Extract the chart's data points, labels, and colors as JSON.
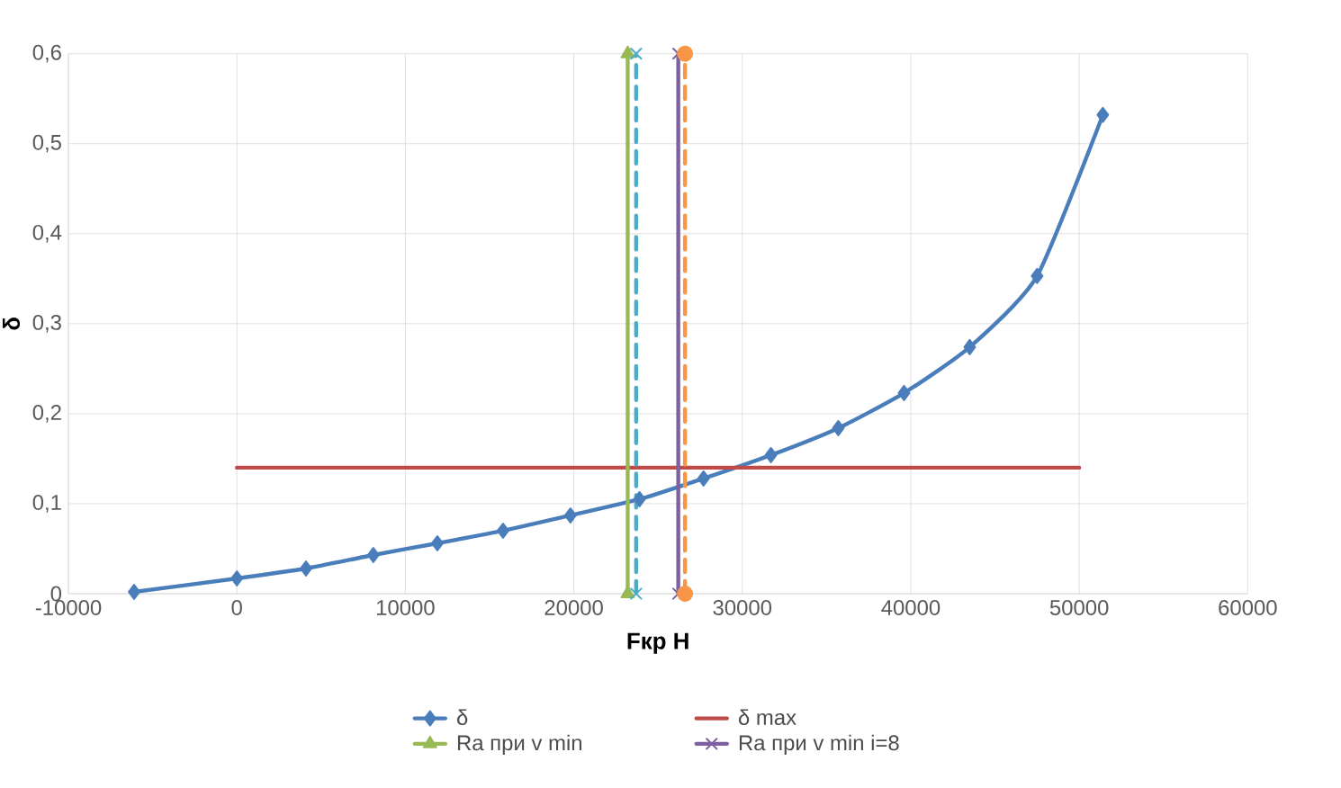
{
  "chart_data": {
    "type": "line",
    "xlabel": "Fкр Н",
    "ylabel": "δ",
    "xlim": [
      -10000,
      60000
    ],
    "xticks": [
      -10000,
      0,
      10000,
      20000,
      30000,
      40000,
      50000,
      60000
    ],
    "ylim": [
      0,
      0.6
    ],
    "yticks": [
      0,
      {
        "value": 0.1,
        "label": "0,1"
      },
      {
        "value": 0.2,
        "label": "0,2"
      },
      {
        "value": 0.3,
        "label": "0,3"
      },
      {
        "value": 0.4,
        "label": "0,4"
      },
      {
        "value": 0.5,
        "label": "0,5"
      },
      {
        "value": 0.6,
        "label": "0,6"
      }
    ],
    "grid": true,
    "legend": "bottom",
    "series": [
      {
        "name": "δ",
        "color": "#4a7ebb",
        "marker": "diamond",
        "line_style": "solid",
        "x": [
          -6100,
          0,
          4100,
          8100,
          11900,
          15800,
          19800,
          23900,
          27700,
          31700,
          35700,
          39600,
          43500,
          47500,
          51400
        ],
        "values": [
          0.002,
          0.017,
          0.028,
          0.043,
          0.056,
          0.07,
          0.087,
          0.105,
          0.128,
          0.154,
          0.184,
          0.223,
          0.274,
          0.353,
          0.532
        ]
      },
      {
        "name": "δ max",
        "color": "#be4b48",
        "marker": "none",
        "line_style": "solid",
        "x": [
          0,
          50000
        ],
        "values": [
          0.14,
          0.14
        ]
      },
      {
        "name": "Ra при v min",
        "color": "#98b954",
        "marker": "triangle",
        "line_style": "solid",
        "x": [
          23200,
          23200
        ],
        "values": [
          0,
          0.6
        ]
      },
      {
        "color": "#4bacc6",
        "marker": "cross",
        "line_style": "dashed",
        "x": [
          23700,
          23700
        ],
        "values": [
          0,
          0.6
        ]
      },
      {
        "name": "Ra при v min i=8",
        "color": "#7d60a0",
        "marker": "cross",
        "line_style": "solid",
        "x": [
          26200,
          26200
        ],
        "values": [
          0,
          0.6
        ]
      },
      {
        "color": "#f79646",
        "marker": "circle",
        "line_style": "dashed",
        "x": [
          26600,
          26600
        ],
        "values": [
          0,
          0.6
        ]
      }
    ]
  }
}
